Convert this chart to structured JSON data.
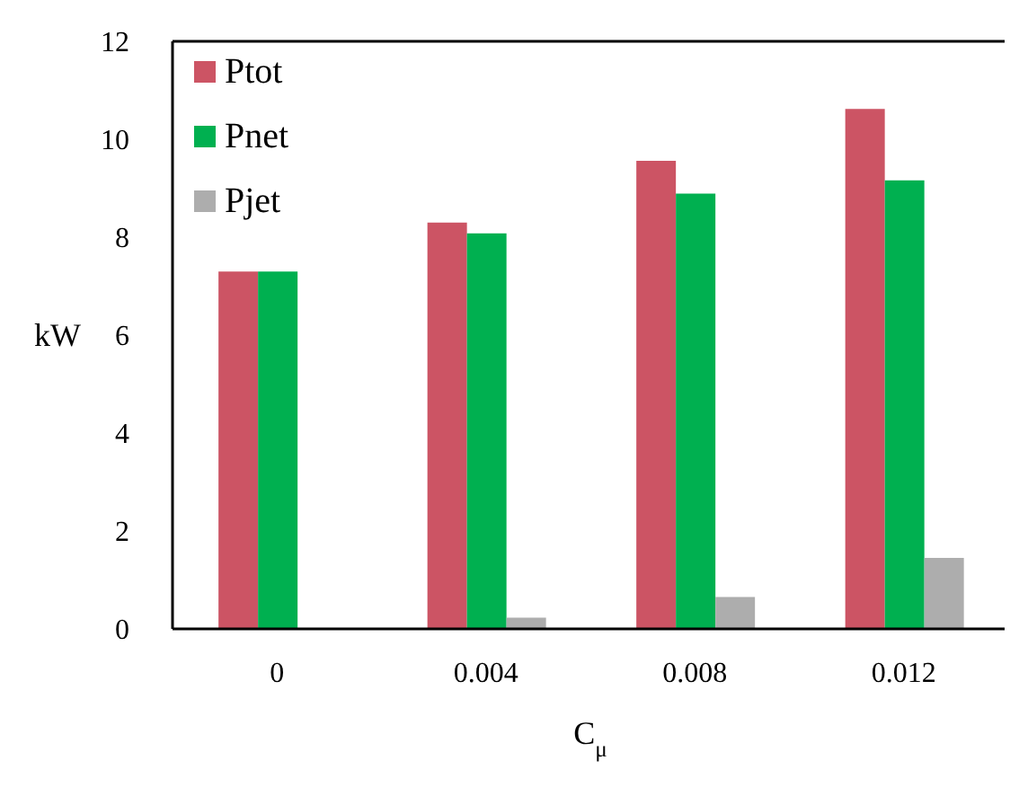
{
  "chart_data": {
    "type": "bar",
    "xlabel": "C$_{μ}$",
    "ylabel": "kW",
    "categories": [
      "0",
      "0.004",
      "0.008",
      "0.012"
    ],
    "series": [
      {
        "name": "Ptot",
        "color": "#cc5464",
        "values": [
          7.3,
          8.3,
          9.56,
          10.62
        ]
      },
      {
        "name": "Pnet",
        "color": "#00b050",
        "values": [
          7.3,
          8.08,
          8.89,
          9.16
        ]
      },
      {
        "name": "Pjet",
        "color": "#adadad",
        "values": [
          0,
          0.23,
          0.65,
          1.45
        ]
      }
    ],
    "ylim": [
      0,
      12
    ],
    "yticks": [
      0,
      2,
      4,
      6,
      8,
      10,
      12
    ],
    "grid": false,
    "legend": "top left"
  }
}
